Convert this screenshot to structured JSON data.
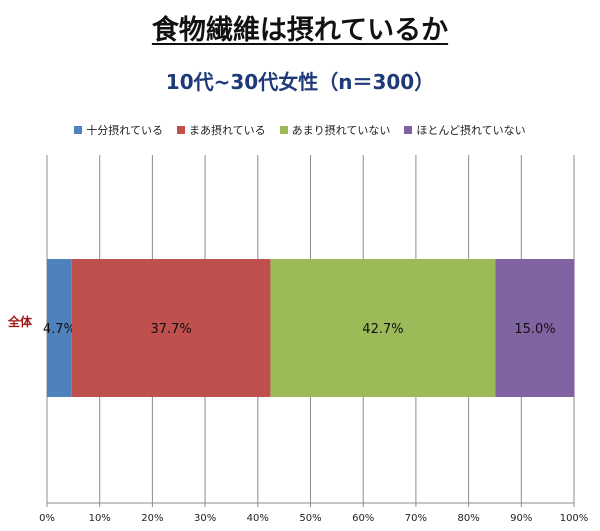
{
  "title": "食物繊維は摂れているか",
  "subtitle": "10代~30代女性（n＝300）",
  "chart_data": {
    "type": "bar",
    "orientation": "horizontal-stacked-100",
    "categories": [
      "全体"
    ],
    "series": [
      {
        "name": "十分摂れている",
        "values": [
          4.7
        ],
        "label": "4.7%",
        "color": "#4f81bd"
      },
      {
        "name": "まあ摂れている",
        "values": [
          37.7
        ],
        "label": "37.7%",
        "color": "#c0504d"
      },
      {
        "name": "あまり摂れていない",
        "values": [
          42.7
        ],
        "label": "42.7%",
        "color": "#9bbb59"
      },
      {
        "name": "ほとんど摂れていない",
        "values": [
          15.0
        ],
        "label": "15.0%",
        "color": "#8064a2"
      }
    ],
    "xlim": [
      0,
      100
    ],
    "xticks": [
      "0%",
      "10%",
      "20%",
      "30%",
      "40%",
      "50%",
      "60%",
      "70%",
      "80%",
      "90%",
      "100%"
    ],
    "grid": true,
    "legend": "top"
  }
}
